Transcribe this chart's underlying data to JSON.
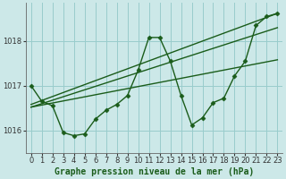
{
  "title": "Graphe pression niveau de la mer (hPa)",
  "background_color": "#cce8e8",
  "grid_color": "#99cccc",
  "line_color": "#1a5c1a",
  "marker_color": "#1a5c1a",
  "xlim": [
    -0.5,
    23.5
  ],
  "ylim": [
    1015.5,
    1018.85
  ],
  "yticks": [
    1016,
    1017,
    1018
  ],
  "xticks": [
    0,
    1,
    2,
    3,
    4,
    5,
    6,
    7,
    8,
    9,
    10,
    11,
    12,
    13,
    14,
    15,
    16,
    17,
    18,
    19,
    20,
    21,
    22,
    23
  ],
  "series_main": {
    "x": [
      0,
      1,
      2,
      3,
      4,
      5,
      6,
      7,
      8,
      9,
      10,
      11,
      12,
      13,
      14,
      15,
      16,
      17,
      18,
      19,
      20,
      21,
      22,
      23
    ],
    "y": [
      1017.0,
      1016.65,
      1016.55,
      1015.95,
      1015.88,
      1015.92,
      1016.25,
      1016.45,
      1016.58,
      1016.78,
      1017.35,
      1018.08,
      1018.08,
      1017.55,
      1016.78,
      1016.12,
      1016.28,
      1016.62,
      1016.72,
      1017.22,
      1017.55,
      1018.35,
      1018.55,
      1018.62
    ]
  },
  "trend_lines": [
    {
      "x": [
        0,
        23
      ],
      "y": [
        1016.58,
        1018.62
      ]
    },
    {
      "x": [
        0,
        23
      ],
      "y": [
        1016.52,
        1018.3
      ]
    },
    {
      "x": [
        0,
        23
      ],
      "y": [
        1016.52,
        1017.58
      ]
    }
  ],
  "xlabel_fontsize": 7.0,
  "tick_fontsize": 6.0,
  "marker_size": 2.5,
  "line_width": 1.0
}
